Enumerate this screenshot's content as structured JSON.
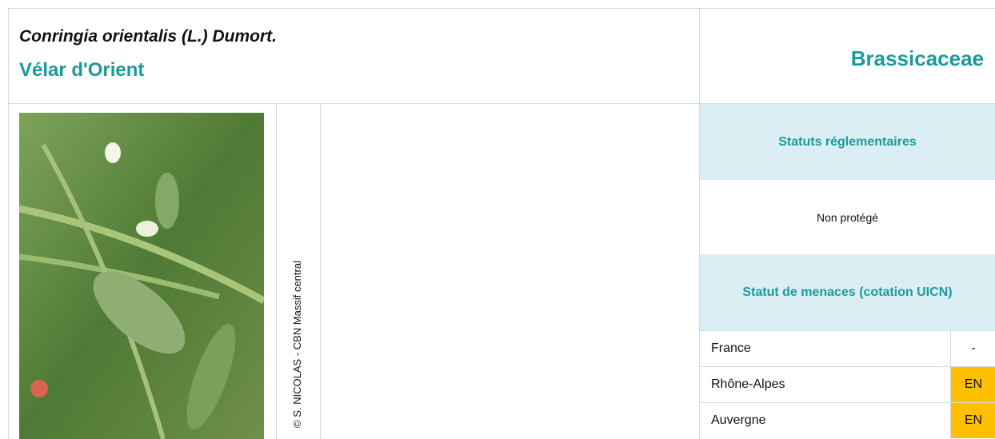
{
  "header": {
    "scientific_name": "Conringia orientalis (L.) Dumort.",
    "common_name": "Vélar d'Orient",
    "family": "Brassicaceae"
  },
  "photo_credit": "© S. NICOLAS - CBN Massif central",
  "regulatory": {
    "title": "Statuts réglementaires",
    "status": "Non protégé"
  },
  "threats": {
    "title": "Statut de menaces (cotation UICN)",
    "rows": [
      {
        "region": "France",
        "status": "-"
      },
      {
        "region": "Rhône-Alpes",
        "status": "EN"
      },
      {
        "region": "Auvergne",
        "status": "EN"
      }
    ]
  }
}
